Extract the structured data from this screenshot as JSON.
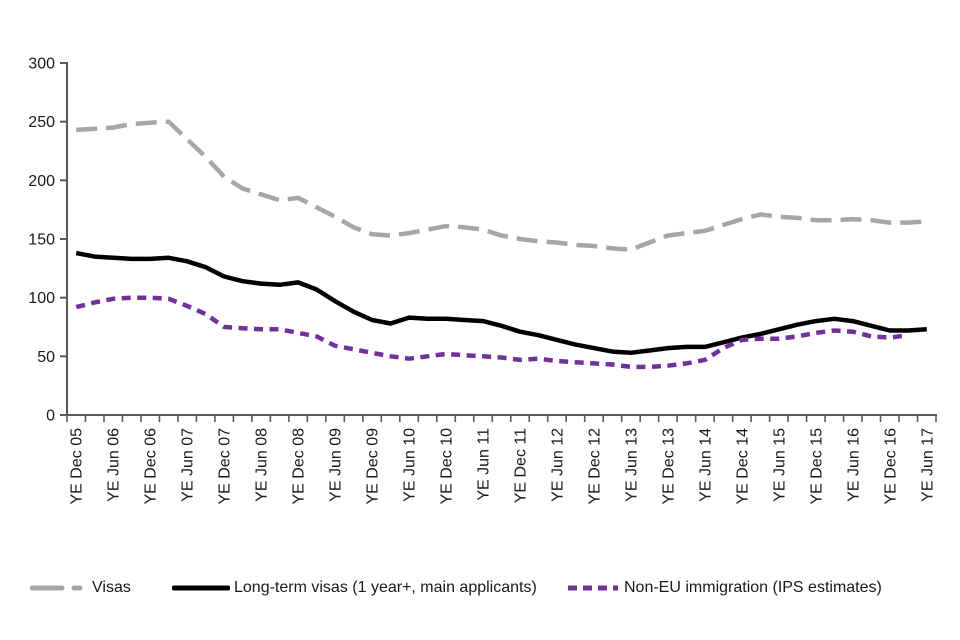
{
  "chart_data": {
    "type": "line",
    "title": "",
    "xlabel": "",
    "ylabel": "",
    "ylim": [
      0,
      300
    ],
    "yticks": [
      0,
      50,
      100,
      150,
      200,
      250,
      300
    ],
    "grid": "off",
    "legend_position": "bottom",
    "x_points_per_label": 2,
    "x_tick_labels": [
      "YE Dec 05",
      "YE Jun 06",
      "YE Dec 06",
      "YE Jun 07",
      "YE Dec 07",
      "YE Jun 08",
      "YE Dec 08",
      "YE Jun 09",
      "YE Dec 09",
      "YE Jun 10",
      "YE Dec 10",
      "YE Jun 11",
      "YE Dec 11",
      "YE Jun 12",
      "YE Dec 12",
      "YE Jun 13",
      "YE Dec 13",
      "YE Jun 14",
      "YE Dec 14",
      "YE Jun 15",
      "YE Dec 15",
      "YE Jun 16",
      "YE Dec 16",
      "YE Jun 17"
    ],
    "series": [
      {
        "name": "Visas",
        "color": "#a6a6a6",
        "style": "long-dash",
        "values": [
          243,
          244,
          245,
          248,
          249,
          250,
          235,
          220,
          203,
          193,
          188,
          183,
          185,
          177,
          169,
          160,
          154,
          153,
          155,
          158,
          161,
          160,
          158,
          153,
          150,
          148,
          147,
          145,
          144,
          142,
          141,
          147,
          153,
          155,
          157,
          162,
          167,
          171,
          169,
          168,
          166,
          166,
          167,
          166,
          164,
          164,
          165
        ]
      },
      {
        "name": "Long-term visas (1 year+, main applicants)",
        "color": "#000000",
        "style": "solid",
        "values": [
          138,
          135,
          134,
          133,
          133,
          134,
          131,
          126,
          118,
          114,
          112,
          111,
          113,
          107,
          97,
          88,
          81,
          78,
          83,
          82,
          82,
          81,
          80,
          76,
          71,
          68,
          64,
          60,
          57,
          54,
          53,
          55,
          57,
          58,
          58,
          62,
          66,
          69,
          73,
          77,
          80,
          82,
          80,
          76,
          72,
          72,
          73
        ]
      },
      {
        "name": "Non-EU immigration (IPS estimates)",
        "color": "#7030a0",
        "style": "short-dash",
        "values": [
          92,
          96,
          99,
          100,
          100,
          99,
          93,
          86,
          75,
          74,
          73,
          73,
          70,
          67,
          59,
          56,
          53,
          50,
          48,
          50,
          52,
          51,
          50,
          49,
          47,
          48,
          46,
          45,
          44,
          43,
          41,
          41,
          42,
          44,
          47,
          57,
          64,
          65,
          65,
          67,
          70,
          72,
          71,
          67,
          66,
          68
        ]
      }
    ]
  }
}
